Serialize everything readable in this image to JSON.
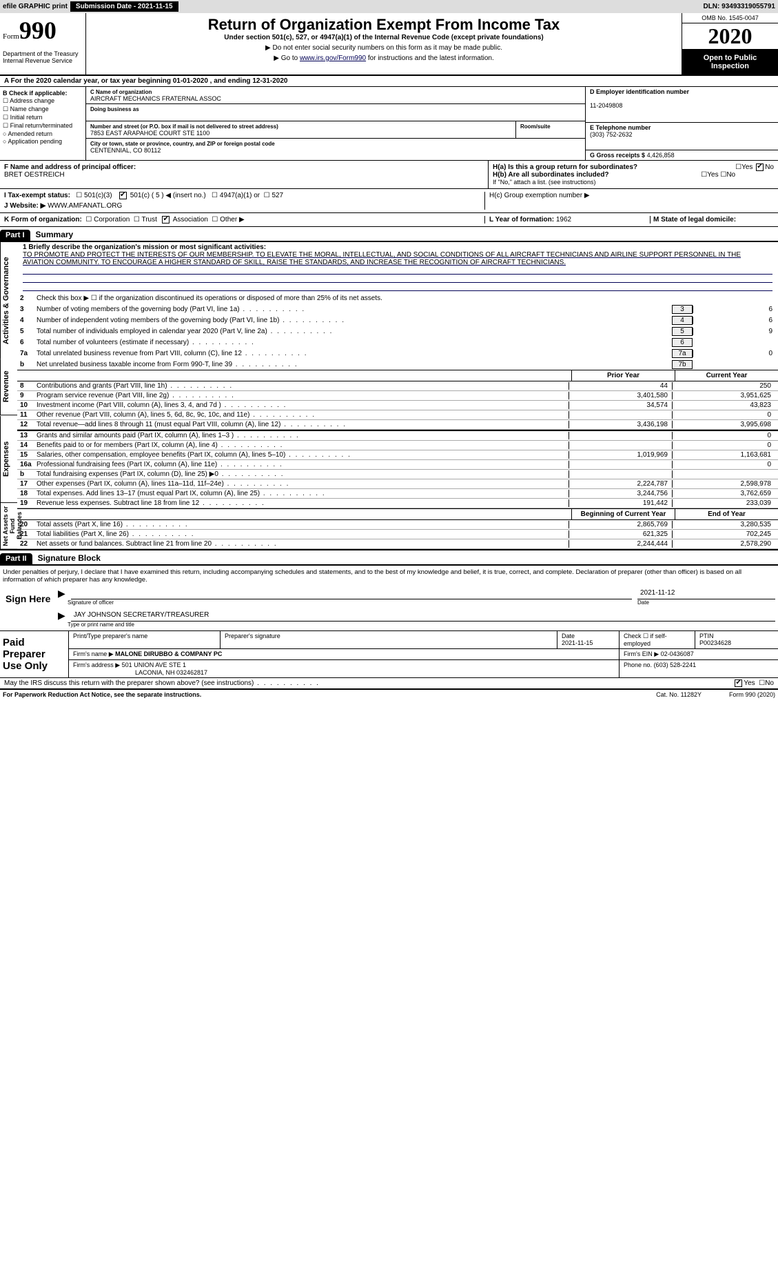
{
  "topbar": {
    "efile": "efile GRAPHIC print",
    "submission_label": "Submission Date - 2021-11-15",
    "dln": "DLN: 93493319055791"
  },
  "header": {
    "form_word": "Form",
    "form_num": "990",
    "dept": "Department of the Treasury\nInternal Revenue Service",
    "title": "Return of Organization Exempt From Income Tax",
    "subtitle": "Under section 501(c), 527, or 4947(a)(1) of the Internal Revenue Code (except private foundations)",
    "note1": "▶ Do not enter social security numbers on this form as it may be made public.",
    "note2_pre": "▶ Go to ",
    "note2_link": "www.irs.gov/Form990",
    "note2_post": " for instructions and the latest information.",
    "omb": "OMB No. 1545-0047",
    "year": "2020",
    "open": "Open to Public Inspection"
  },
  "sectionA": "A For the 2020 calendar year, or tax year beginning 01-01-2020     , and ending 12-31-2020",
  "sectionB": {
    "title": "B Check if applicable:",
    "items": [
      "Address change",
      "Name change",
      "Initial return",
      "Final return/terminated",
      "Amended return",
      "Application pending"
    ]
  },
  "sectionC": {
    "name_lbl": "C Name of organization",
    "name": "AIRCRAFT MECHANICS FRATERNAL ASSOC",
    "dba_lbl": "Doing business as",
    "dba": "",
    "addr_lbl": "Number and street (or P.O. box if mail is not delivered to street address)",
    "addr": "7853 EAST ARAPAHOE COURT STE 1100",
    "room_lbl": "Room/suite",
    "city_lbl": "City or town, state or province, country, and ZIP or foreign postal code",
    "city": "CENTENNIAL, CO  80112"
  },
  "sectionD": {
    "lbl": "D Employer identification number",
    "val": "11-2049808"
  },
  "sectionE": {
    "lbl": "E Telephone number",
    "val": "(303) 752-2632"
  },
  "sectionG": {
    "lbl": "G Gross receipts $",
    "val": "4,426,858"
  },
  "sectionF": {
    "lbl": "F  Name and address of principal officer:",
    "val": "BRET OESTREICH"
  },
  "sectionH": {
    "a": "H(a)  Is this a group return for subordinates?",
    "b": "H(b)  Are all subordinates included?",
    "b_note": "If \"No,\" attach a list. (see instructions)",
    "c": "H(c)  Group exemption number ▶",
    "yes": "Yes",
    "no": "No"
  },
  "sectionI": {
    "lbl": "I    Tax-exempt status:",
    "c3": "501(c)(3)",
    "c": "501(c) ( 5 ) ◀ (insert no.)",
    "a1": "4947(a)(1) or",
    "s527": "527"
  },
  "sectionJ": {
    "lbl": "J   Website: ▶",
    "val": "WWW.AMFANATL.ORG"
  },
  "sectionK": {
    "lbl": "K Form of organization:",
    "corp": "Corporation",
    "trust": "Trust",
    "assoc": "Association",
    "other": "Other ▶"
  },
  "sectionL": {
    "lbl": "L Year of formation:",
    "val": "1962"
  },
  "sectionM": {
    "lbl": "M State of legal domicile:",
    "val": ""
  },
  "parts": {
    "p1": "Part I",
    "p1t": "Summary",
    "p2": "Part II",
    "p2t": "Signature Block"
  },
  "vtabs": {
    "ag": "Activities & Governance",
    "rev": "Revenue",
    "exp": "Expenses",
    "na": "Net Assets or\nFund Balances"
  },
  "summary": {
    "l1_lbl": "1  Briefly describe the organization's mission or most significant activities:",
    "l1": "TO PROMOTE AND PROTECT THE INTERESTS OF OUR MEMBERSHIP. TO ELEVATE THE MORAL, INTELLECTUAL, AND SOCIAL CONDITIONS OF ALL AIRCRAFT TECHNICIANS AND AIRLINE SUPPORT PERSONNEL IN THE AVIATION COMMUNITY. TO ENCOURAGE A HIGHER STANDARD OF SKILL, RAISE THE STANDARDS, AND INCREASE THE RECOGNITION OF AIRCRAFT TECHNICIANS.",
    "l2": "Check this box ▶ ☐ if the organization discontinued its operations or disposed of more than 25% of its net assets.",
    "lines_box": [
      {
        "n": "3",
        "d": "Number of voting members of the governing body (Part VI, line 1a)",
        "box": "3",
        "v": "6"
      },
      {
        "n": "4",
        "d": "Number of independent voting members of the governing body (Part VI, line 1b)",
        "box": "4",
        "v": "6"
      },
      {
        "n": "5",
        "d": "Total number of individuals employed in calendar year 2020 (Part V, line 2a)",
        "box": "5",
        "v": "9"
      },
      {
        "n": "6",
        "d": "Total number of volunteers (estimate if necessary)",
        "box": "6",
        "v": ""
      },
      {
        "n": "7a",
        "d": "Total unrelated business revenue from Part VIII, column (C), line 12",
        "box": "7a",
        "v": "0"
      },
      {
        "n": "b",
        "d": "Net unrelated business taxable income from Form 990-T, line 39",
        "box": "7b",
        "v": ""
      }
    ],
    "col_headers": {
      "prior": "Prior Year",
      "current": "Current Year",
      "begin": "Beginning of Current Year",
      "end": "End of Year"
    },
    "revenue": [
      {
        "n": "8",
        "d": "Contributions and grants (Part VIII, line 1h)",
        "p": "44",
        "c": "250"
      },
      {
        "n": "9",
        "d": "Program service revenue (Part VIII, line 2g)",
        "p": "3,401,580",
        "c": "3,951,625"
      },
      {
        "n": "10",
        "d": "Investment income (Part VIII, column (A), lines 3, 4, and 7d )",
        "p": "34,574",
        "c": "43,823"
      },
      {
        "n": "11",
        "d": "Other revenue (Part VIII, column (A), lines 5, 6d, 8c, 9c, 10c, and 11e)",
        "p": "",
        "c": "0"
      },
      {
        "n": "12",
        "d": "Total revenue—add lines 8 through 11 (must equal Part VIII, column (A), line 12)",
        "p": "3,436,198",
        "c": "3,995,698"
      }
    ],
    "expenses": [
      {
        "n": "13",
        "d": "Grants and similar amounts paid (Part IX, column (A), lines 1–3 )",
        "p": "",
        "c": "0"
      },
      {
        "n": "14",
        "d": "Benefits paid to or for members (Part IX, column (A), line 4)",
        "p": "",
        "c": "0"
      },
      {
        "n": "15",
        "d": "Salaries, other compensation, employee benefits (Part IX, column (A), lines 5–10)",
        "p": "1,019,969",
        "c": "1,163,681"
      },
      {
        "n": "16a",
        "d": "Professional fundraising fees (Part IX, column (A), line 11e)",
        "p": "",
        "c": "0"
      },
      {
        "n": "b",
        "d": "Total fundraising expenses (Part IX, column (D), line 25) ▶0",
        "p": "",
        "c": ""
      },
      {
        "n": "17",
        "d": "Other expenses (Part IX, column (A), lines 11a–11d, 11f–24e)",
        "p": "2,224,787",
        "c": "2,598,978"
      },
      {
        "n": "18",
        "d": "Total expenses. Add lines 13–17 (must equal Part IX, column (A), line 25)",
        "p": "3,244,756",
        "c": "3,762,659"
      },
      {
        "n": "19",
        "d": "Revenue less expenses. Subtract line 18 from line 12",
        "p": "191,442",
        "c": "233,039"
      }
    ],
    "netassets": [
      {
        "n": "20",
        "d": "Total assets (Part X, line 16)",
        "p": "2,865,769",
        "c": "3,280,535"
      },
      {
        "n": "21",
        "d": "Total liabilities (Part X, line 26)",
        "p": "621,325",
        "c": "702,245"
      },
      {
        "n": "22",
        "d": "Net assets or fund balances. Subtract line 21 from line 20",
        "p": "2,244,444",
        "c": "2,578,290"
      }
    ]
  },
  "sig": {
    "penalties": "Under penalties of perjury, I declare that I have examined this return, including accompanying schedules and statements, and to the best of my knowledge and belief, it is true, correct, and complete. Declaration of preparer (other than officer) is based on all information of which preparer has any knowledge.",
    "sign_here": "Sign Here",
    "sig_officer": "Signature of officer",
    "date": "Date",
    "date_val": "2021-11-12",
    "name_title": "JAY JOHNSON  SECRETARY/TREASURER",
    "name_title_lbl": "Type or print name and title"
  },
  "preparer": {
    "label": "Paid Preparer Use Only",
    "h1": "Print/Type preparer's name",
    "h2": "Preparer's signature",
    "h3_lbl": "Date",
    "h3": "2021-11-15",
    "h4_lbl": "Check ☐ if self-employed",
    "h5_lbl": "PTIN",
    "h5": "P00234628",
    "firm_lbl": "Firm's name    ▶",
    "firm": "MALONE DIRUBBO & COMPANY PC",
    "ein_lbl": "Firm's EIN ▶",
    "ein": "02-0436087",
    "addr_lbl": "Firm's address ▶",
    "addr": "501 UNION AVE STE 1",
    "addr2": "LACONIA, NH  032462817",
    "phone_lbl": "Phone no.",
    "phone": "(603) 528-2241",
    "discuss": "May the IRS discuss this return with the preparer shown above? (see instructions)",
    "yes": "Yes",
    "no": "No"
  },
  "footer": {
    "pra": "For Paperwork Reduction Act Notice, see the separate instructions.",
    "cat": "Cat. No. 11282Y",
    "form": "Form 990 (2020)"
  }
}
